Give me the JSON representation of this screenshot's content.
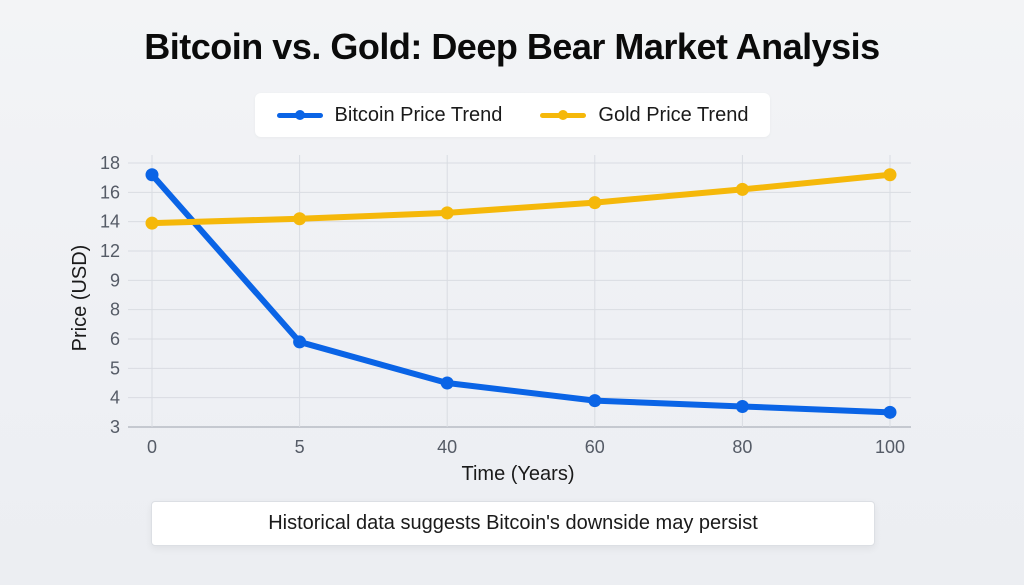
{
  "colors": {
    "bitcoin": "#0a64e6",
    "gold": "#f5b80a",
    "grid": "#d9dce2",
    "axis": "#b8bcc4"
  },
  "chart_data": {
    "type": "line",
    "title": "Bitcoin vs. Gold: Deep Bear Market Analysis",
    "xlabel": "Time (Years)",
    "ylabel": "Price (USD)",
    "x": [
      "0",
      "5",
      "40",
      "60",
      "80",
      "100"
    ],
    "y_ticks": [
      "3",
      "4",
      "5",
      "6",
      "8",
      "9",
      "12",
      "14",
      "16",
      "18"
    ],
    "y_axis_note": "ticks are evenly spaced (ordinal scale)",
    "grid": true,
    "legend_position": "top-center",
    "series": [
      {
        "name": "Bitcoin Price Trend",
        "color_key": "bitcoin",
        "values": [
          17.2,
          5.9,
          4.5,
          3.9,
          3.7,
          3.5
        ]
      },
      {
        "name": "Gold Price Trend",
        "color_key": "gold",
        "values": [
          13.9,
          14.2,
          14.6,
          15.3,
          16.2,
          17.2
        ]
      }
    ]
  },
  "footer_note": "Historical data suggests Bitcoin's downside may persist"
}
